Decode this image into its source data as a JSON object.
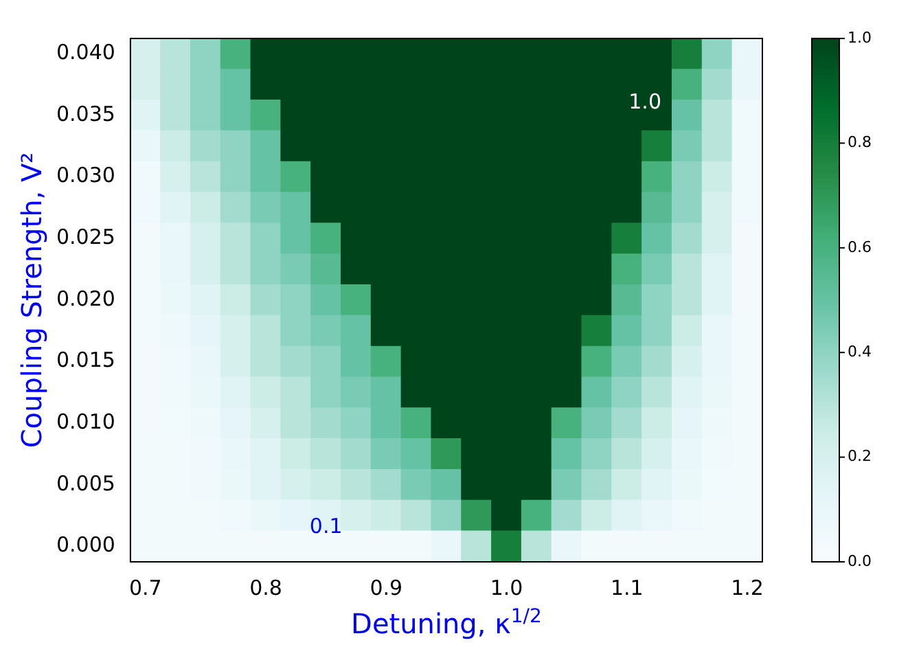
{
  "chart_data": {
    "type": "heatmap",
    "xlabel": "Detuning, κ$^{1/2}$",
    "ylabel": "Coupling Strength, V²",
    "categories": [
      "0.7",
      null,
      null,
      null,
      "0.8",
      null,
      null,
      null,
      "0.9",
      null,
      null,
      null,
      "1.0",
      null,
      null,
      null,
      "1.1",
      null,
      null,
      null,
      "1.2"
    ],
    "y_categories": [
      "0.040",
      null,
      "0.035",
      null,
      "0.030",
      null,
      "0.025",
      null,
      "0.020",
      null,
      "0.015",
      null,
      "0.010",
      null,
      "0.005",
      null,
      "0.000"
    ],
    "cells": [
      [
        0.2,
        0.3,
        0.4,
        0.6,
        1,
        1,
        1,
        1,
        1,
        1,
        1,
        1,
        1,
        1,
        1,
        1,
        1,
        1,
        0.8,
        0.4,
        0.1
      ],
      [
        0.2,
        0.3,
        0.4,
        0.5,
        1,
        1,
        1,
        1,
        1,
        1,
        1,
        1,
        1,
        1,
        1,
        1,
        1,
        1,
        0.6,
        0.35,
        0.1
      ],
      [
        0.15,
        0.3,
        0.4,
        0.5,
        0.6,
        1,
        1,
        1,
        1,
        1,
        1,
        1,
        1,
        1,
        1,
        1,
        1,
        1,
        0.5,
        0.3,
        0.05
      ],
      [
        0.1,
        0.25,
        0.35,
        0.4,
        0.5,
        1,
        1,
        1,
        1,
        1,
        1,
        1,
        1,
        1,
        1,
        1,
        1,
        0.8,
        0.45,
        0.3,
        0.05
      ],
      [
        0.05,
        0.2,
        0.3,
        0.4,
        0.5,
        0.6,
        1,
        1,
        1,
        1,
        1,
        1,
        1,
        1,
        1,
        1,
        1,
        0.6,
        0.4,
        0.25,
        0.05
      ],
      [
        0.05,
        0.15,
        0.25,
        0.35,
        0.45,
        0.5,
        1,
        1,
        1,
        1,
        1,
        1,
        1,
        1,
        1,
        1,
        1,
        0.55,
        0.4,
        0.2,
        0.05
      ],
      [
        0.03,
        0.1,
        0.2,
        0.3,
        0.4,
        0.5,
        0.6,
        1,
        1,
        1,
        1,
        1,
        1,
        1,
        1,
        1,
        0.8,
        0.5,
        0.35,
        0.2,
        0.03
      ],
      [
        0.03,
        0.1,
        0.2,
        0.3,
        0.4,
        0.45,
        0.55,
        1,
        1,
        1,
        1,
        1,
        1,
        1,
        1,
        1,
        0.6,
        0.45,
        0.3,
        0.15,
        0.03
      ],
      [
        0.03,
        0.08,
        0.15,
        0.25,
        0.35,
        0.4,
        0.5,
        0.6,
        1,
        1,
        1,
        1,
        1,
        1,
        1,
        1,
        0.55,
        0.4,
        0.3,
        0.15,
        0.03
      ],
      [
        0.03,
        0.06,
        0.12,
        0.2,
        0.3,
        0.4,
        0.45,
        0.5,
        1,
        1,
        1,
        1,
        1,
        1,
        1,
        0.8,
        0.5,
        0.4,
        0.25,
        0.1,
        0.03
      ],
      [
        0.03,
        0.05,
        0.1,
        0.2,
        0.3,
        0.35,
        0.4,
        0.5,
        0.6,
        1,
        1,
        1,
        1,
        1,
        1,
        0.6,
        0.45,
        0.35,
        0.2,
        0.1,
        0.03
      ],
      [
        0.03,
        0.05,
        0.08,
        0.15,
        0.25,
        0.3,
        0.4,
        0.45,
        0.5,
        1,
        1,
        1,
        1,
        1,
        1,
        0.5,
        0.4,
        0.3,
        0.15,
        0.08,
        0.03
      ],
      [
        0.03,
        0.04,
        0.06,
        0.12,
        0.2,
        0.3,
        0.35,
        0.4,
        0.5,
        0.6,
        1,
        1,
        1,
        1,
        0.6,
        0.45,
        0.35,
        0.25,
        0.12,
        0.06,
        0.03
      ],
      [
        0.03,
        0.03,
        0.05,
        0.1,
        0.15,
        0.25,
        0.3,
        0.35,
        0.45,
        0.5,
        0.7,
        1,
        1,
        1,
        0.5,
        0.4,
        0.3,
        0.2,
        0.1,
        0.05,
        0.03
      ],
      [
        0.03,
        0.03,
        0.05,
        0.08,
        0.15,
        0.2,
        0.25,
        0.3,
        0.35,
        0.45,
        0.5,
        1,
        1,
        1,
        0.45,
        0.35,
        0.25,
        0.15,
        0.08,
        0.04,
        0.03
      ],
      [
        0.03,
        0.03,
        0.03,
        0.05,
        0.08,
        0.12,
        0.15,
        0.2,
        0.25,
        0.3,
        0.4,
        0.7,
        1,
        0.6,
        0.35,
        0.25,
        0.15,
        0.1,
        0.05,
        0.03,
        0.03
      ],
      [
        0.03,
        0.03,
        0.03,
        0.03,
        0.03,
        0.03,
        0.03,
        0.03,
        0.03,
        0.03,
        0.1,
        0.3,
        0.8,
        0.3,
        0.1,
        0.03,
        0.03,
        0.03,
        0.03,
        0.03,
        0.03
      ]
    ],
    "clim": [
      0,
      1
    ],
    "cticks": [
      {
        "value": 0,
        "label": "0.0"
      },
      0.2,
      0.4,
      0.6,
      0.8,
      {
        "value": 1,
        "label": "1.0"
      }
    ],
    "annotations": [
      "0.1",
      "1.0"
    ]
  }
}
